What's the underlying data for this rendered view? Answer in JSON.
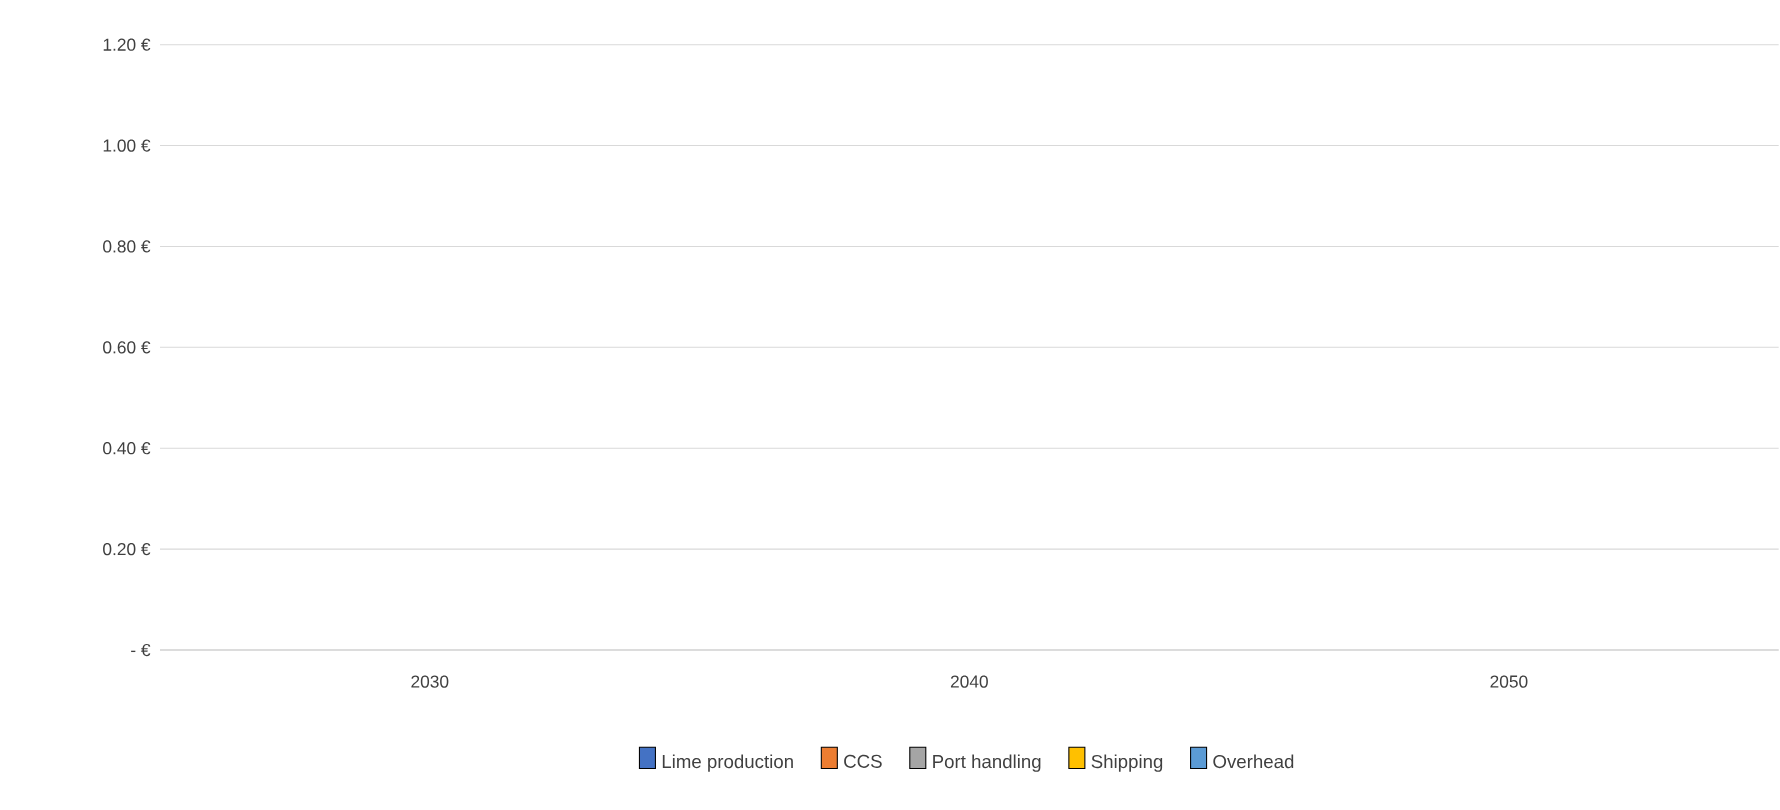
{
  "chart_data": {
    "type": "bar",
    "stacked": true,
    "categories": [
      "2030",
      "2040",
      "2050"
    ],
    "series": [
      {
        "name": "Lime production",
        "color": "#4472c4",
        "values": [
          null,
          null,
          null
        ]
      },
      {
        "name": "CCS",
        "color": "#ed7d31",
        "values": [
          null,
          null,
          null
        ]
      },
      {
        "name": "Port handling",
        "color": "#a5a5a5",
        "values": [
          null,
          null,
          null
        ]
      },
      {
        "name": "Shipping",
        "color": "#ffc000",
        "values": [
          null,
          null,
          null
        ]
      },
      {
        "name": "Overhead",
        "color": "#5b9bd5",
        "values": [
          null,
          null,
          null
        ]
      }
    ],
    "ylim": [
      0,
      1.2
    ],
    "yticks": [
      {
        "value": 0,
        "label": "- €"
      },
      {
        "value": 0.2,
        "label": "0.20 €"
      },
      {
        "value": 0.4,
        "label": "0.40 €"
      },
      {
        "value": 0.6,
        "label": "0.60 €"
      },
      {
        "value": 0.8,
        "label": "0.80 €"
      },
      {
        "value": 1.0,
        "label": "1.00 €"
      },
      {
        "value": 1.2,
        "label": "1.20 €"
      }
    ],
    "grid": "y",
    "legend": "bottom"
  }
}
